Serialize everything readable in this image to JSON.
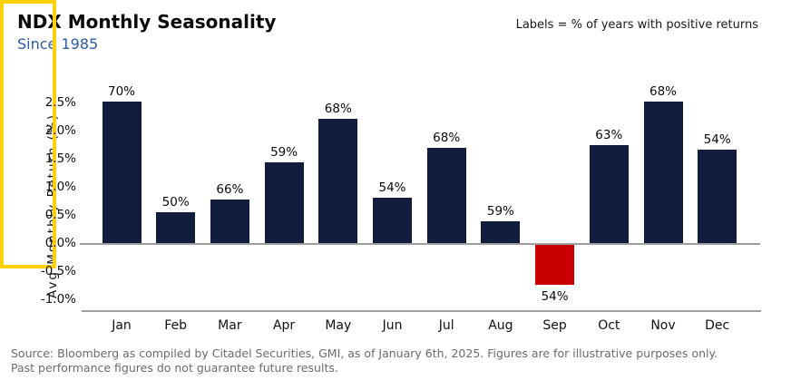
{
  "header": {
    "title": "NDX Monthly Seasonality",
    "subtitle": "Since 1985",
    "note": "Labels = % of years with positive returns"
  },
  "chart_data": {
    "type": "bar",
    "title": "NDX Monthly Seasonality",
    "subtitle": "Since 1985",
    "annotation": "Labels = % of years with positive returns",
    "categories": [
      "Jan",
      "Feb",
      "Mar",
      "Apr",
      "May",
      "Jun",
      "Jul",
      "Aug",
      "Sep",
      "Oct",
      "Nov",
      "Dec"
    ],
    "values": [
      2.52,
      0.57,
      0.78,
      1.44,
      2.22,
      0.82,
      1.7,
      0.4,
      -0.73,
      1.75,
      2.53,
      1.68
    ],
    "bar_labels": [
      "70%",
      "50%",
      "66%",
      "59%",
      "68%",
      "54%",
      "68%",
      "59%",
      "54%",
      "63%",
      "68%",
      "54%"
    ],
    "ylabel": "Avg Monthly Return (%)",
    "xlabel": "",
    "yticks": [
      2.5,
      2.0,
      1.5,
      1.0,
      0.5,
      0.0,
      -0.5,
      -1.0
    ],
    "ytick_labels": [
      "2.5%",
      "2.0%",
      "1.5%",
      "1.0%",
      "0.5%",
      "0.0%",
      "-0.5%",
      "-1.0%"
    ],
    "ylim": [
      -1.2,
      2.9
    ],
    "legend": "none",
    "grid": "zero-baseline and bottom axis line only",
    "highlight": {
      "category": "Jan",
      "description": "yellow rectangle drawn around the January column"
    },
    "colors": {
      "positive_bar": "#111c3e",
      "negative_bar": "#c80000",
      "highlight_box": "#ffd10a",
      "subtitle_text": "#2a5ca8",
      "axis_line": "#9e9e9e",
      "footer_text": "#6b6b6b"
    }
  },
  "footer": {
    "line1": "Source: Bloomberg as compiled by Citadel Securities, GMI, as of January 6th, 2025. Figures are for illustrative purposes only.",
    "line2": "Past performance figures do not guarantee future results."
  }
}
